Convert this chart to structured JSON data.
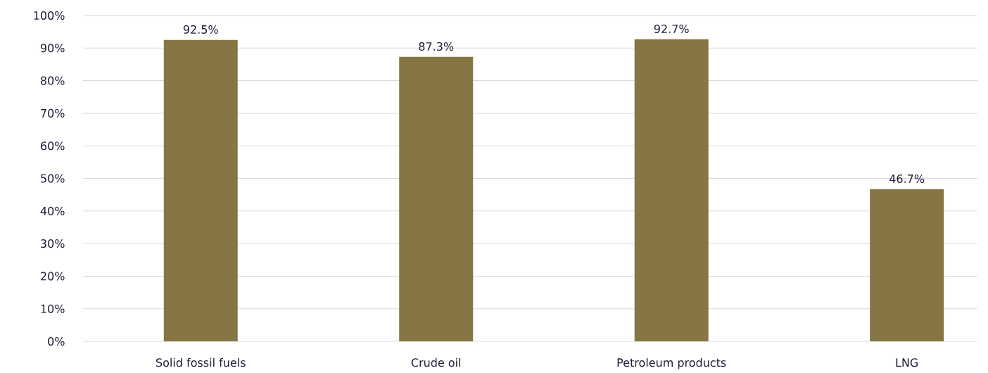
{
  "chart_data": {
    "type": "bar",
    "categories": [
      "Solid fossil fuels",
      "Crude oil",
      "Petroleum products",
      "LNG"
    ],
    "values": [
      92.5,
      87.3,
      92.7,
      46.7
    ],
    "value_labels": [
      "92.5%",
      "87.3%",
      "92.7%",
      "46.7%"
    ],
    "color": "#857643",
    "ylim": [
      0,
      100
    ],
    "yticks": [
      {
        "value": 0,
        "label": "0%"
      },
      {
        "value": 10,
        "label": "10%"
      },
      {
        "value": 20,
        "label": "20%"
      },
      {
        "value": 30,
        "label": "30%"
      },
      {
        "value": 40,
        "label": "40%"
      },
      {
        "value": 50,
        "label": "50%"
      },
      {
        "value": 60,
        "label": "60%"
      },
      {
        "value": 70,
        "label": "70%"
      },
      {
        "value": 80,
        "label": "80%"
      },
      {
        "value": 90,
        "label": "90%"
      },
      {
        "value": 100,
        "label": "100%"
      }
    ],
    "grid": "y"
  }
}
